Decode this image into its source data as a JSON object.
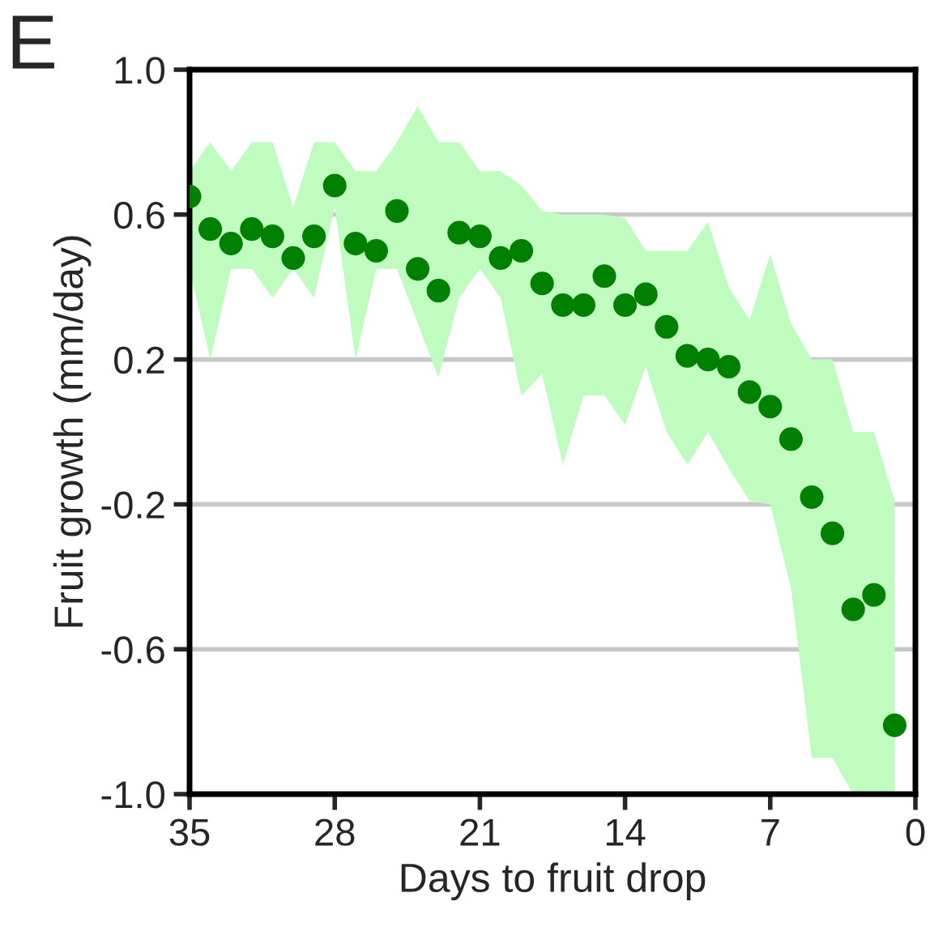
{
  "chart_data": {
    "type": "scatter",
    "xlabel": "Days to fruit drop",
    "ylabel": "Fruit growth (mm/day)",
    "annotations": [
      "E"
    ],
    "x": [
      35,
      34,
      33,
      32,
      31,
      30,
      29,
      28,
      27,
      26,
      25,
      24,
      23,
      22,
      21,
      20,
      19,
      18,
      17,
      16,
      15,
      14,
      13,
      12,
      11,
      10,
      9,
      8,
      7,
      6,
      5,
      4,
      3,
      2,
      1
    ],
    "series": [
      {
        "color": "#008000",
        "values": [
          0.65,
          0.56,
          0.52,
          0.56,
          0.54,
          0.48,
          0.54,
          0.68,
          0.52,
          0.5,
          0.61,
          0.45,
          0.39,
          0.55,
          0.54,
          0.48,
          0.5,
          0.41,
          0.35,
          0.35,
          0.43,
          0.35,
          0.38,
          0.29,
          0.21,
          0.2,
          0.18,
          0.11,
          0.07,
          -0.02,
          -0.18,
          -0.28,
          -0.49,
          -0.45,
          -0.81
        ],
        "upper": [
          0.72,
          0.8,
          0.72,
          0.8,
          0.8,
          0.62,
          0.8,
          0.8,
          0.72,
          0.72,
          0.8,
          0.9,
          0.8,
          0.8,
          0.72,
          0.72,
          0.68,
          0.61,
          0.6,
          0.6,
          0.6,
          0.59,
          0.5,
          0.5,
          0.5,
          0.58,
          0.4,
          0.31,
          0.49,
          0.3,
          0.2,
          0.2,
          0.0,
          0.0,
          -0.19
        ],
        "lower": [
          0.45,
          0.2,
          0.45,
          0.45,
          0.37,
          0.45,
          0.37,
          0.62,
          0.2,
          0.45,
          0.45,
          0.3,
          0.15,
          0.37,
          0.45,
          0.37,
          0.1,
          0.16,
          -0.09,
          0.1,
          0.1,
          0.02,
          0.18,
          0.0,
          -0.09,
          0.0,
          -0.1,
          -0.19,
          -0.2,
          -0.43,
          -0.9,
          -0.9,
          -1.0,
          -1.0,
          -1.0
        ]
      }
    ],
    "xlim": [
      35,
      0
    ],
    "xticks": [
      35,
      28,
      21,
      14,
      7,
      0
    ],
    "ylim": [
      -1.0,
      1.0
    ],
    "yticks": [
      {
        "value": 1.0,
        "label": "1.0"
      },
      {
        "value": 0.6,
        "label": "0.6"
      },
      {
        "value": 0.2,
        "label": "0.2"
      },
      {
        "value": -0.2,
        "label": "-0.2"
      },
      {
        "value": -0.6,
        "label": "-0.6"
      },
      {
        "value": -1.0,
        "label": "-1.0"
      }
    ],
    "grid": "y",
    "marker": "circle"
  }
}
